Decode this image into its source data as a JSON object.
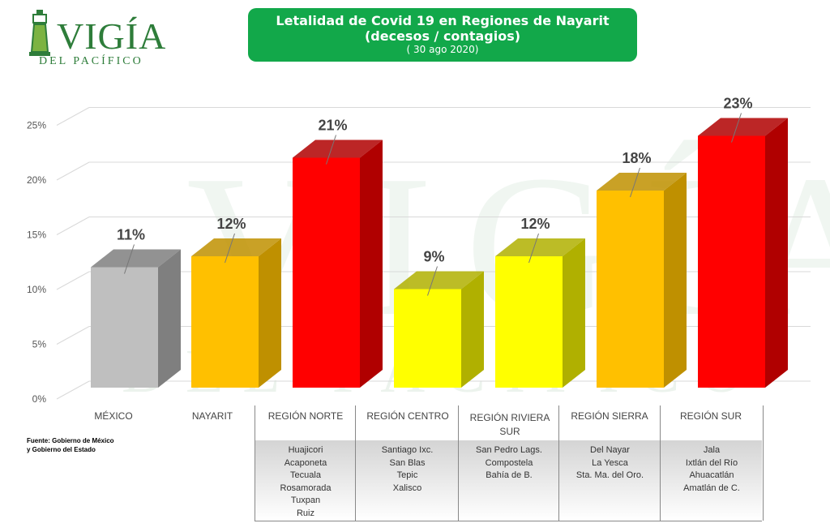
{
  "logo": {
    "name": "VIGÍA",
    "subtitle": "DEL PACÍFICO"
  },
  "title": {
    "line1": "Letalidad de Covid 19 en Regiones de Nayarit",
    "line2": "(decesos / contagios)",
    "line3": "( 30 ago 2020)"
  },
  "source": {
    "line1": "Fuente: Gobierno de México",
    "line2": "y Gobierno del Estado"
  },
  "chart_data": {
    "type": "bar",
    "title": "Letalidad de Covid 19 en Regiones de Nayarit",
    "categories": [
      "MÉXICO",
      "NAYARIT",
      "REGIÓN NORTE",
      "REGIÓN CENTRO",
      "REGIÓN RIVIERA SUR",
      "REGIÓN SIERRA",
      "REGIÓN SUR"
    ],
    "values": [
      11,
      12,
      21,
      9,
      12,
      18,
      23
    ],
    "data_labels": [
      "11%",
      "12%",
      "21%",
      "9%",
      "12%",
      "18%",
      "23%"
    ],
    "colors": [
      "#bfbfbf",
      "#ffc000",
      "#ff0000",
      "#ffff00",
      "#ffff00",
      "#ffc000",
      "#ff0000"
    ],
    "side_colors": [
      "#7f7f7f",
      "#bf9000",
      "#b00000",
      "#b0b000",
      "#b0b000",
      "#bf9000",
      "#b00000"
    ],
    "ylim": [
      0,
      25
    ],
    "yticks": [
      "0%",
      "5%",
      "10%",
      "15%",
      "20%",
      "25%"
    ],
    "grid": true,
    "ylabel": "",
    "xlabel": ""
  },
  "regions": [
    {
      "name": "REGIÓN NORTE",
      "municipalities": [
        "Huajicori",
        "Acaponeta",
        "Tecuala",
        "Rosamorada",
        "Tuxpan",
        "Ruiz"
      ]
    },
    {
      "name": "REGIÓN CENTRO",
      "municipalities": [
        "Santiago Ixc.",
        "San Blas",
        "Tepic",
        "Xalisco"
      ]
    },
    {
      "name": "REGIÓN RIVIERA SUR",
      "municipalities": [
        "San Pedro Lags.",
        "Compostela",
        "Bahía de B."
      ]
    },
    {
      "name": "REGIÓN SIERRA",
      "municipalities": [
        "Del Nayar",
        "La Yesca",
        "Sta. Ma. del Oro."
      ]
    },
    {
      "name": "REGIÓN SUR",
      "municipalities": [
        "Jala",
        "Ixtlán del Río",
        "Ahuacatlán",
        "Amatlán de C."
      ]
    }
  ]
}
